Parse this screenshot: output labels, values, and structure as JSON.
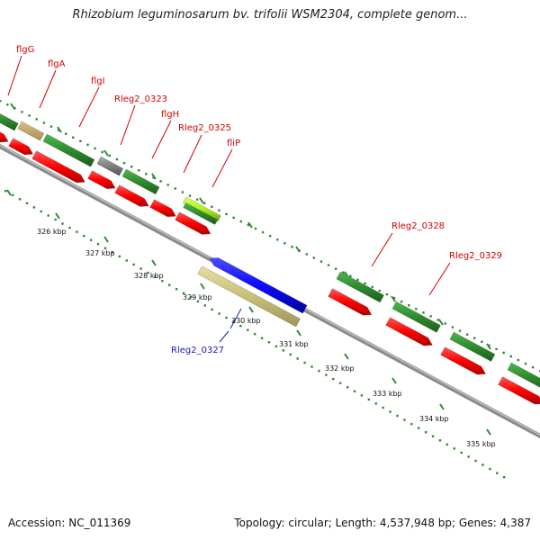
{
  "title": "Rhizobium leguminosarum bv. trifolii WSM2304, complete genom...",
  "footer": {
    "accession": "Accession: NC_011369",
    "topology": "Topology: circular; Length: 4,537,948 bp; Genes: 4,387"
  },
  "kbp_labels": [
    "326 kbp",
    "327 kbp",
    "328 kbp",
    "329 kbp",
    "330 kbp",
    "331 kbp",
    "332 kbp",
    "333 kbp",
    "334 kbp",
    "335 kbp"
  ],
  "gene_labels": [
    {
      "text": "flgG",
      "color": "#d40000"
    },
    {
      "text": "flgA",
      "color": "#d40000"
    },
    {
      "text": "flgI",
      "color": "#d40000"
    },
    {
      "text": "Rleg2_0323",
      "color": "#d40000"
    },
    {
      "text": "flgH",
      "color": "#d40000"
    },
    {
      "text": "Rleg2_0325",
      "color": "#d40000"
    },
    {
      "text": "fliP",
      "color": "#d40000"
    },
    {
      "text": "Rleg2_0328",
      "color": "#d40000"
    },
    {
      "text": "Rleg2_0329",
      "color": "#d40000"
    },
    {
      "text": "Rleg2_0327",
      "color": "#1a1ab8"
    }
  ],
  "colors": {
    "cds_forward": "#ff0000",
    "gene_feature": "#2e8b2e",
    "reverse_cds": "#0a0aff",
    "pseudo_feature": "#c8bf7a",
    "highlight_feature": "#a6e22e",
    "backbone": "#8c8c8c",
    "tick": "#2e8b2e"
  }
}
